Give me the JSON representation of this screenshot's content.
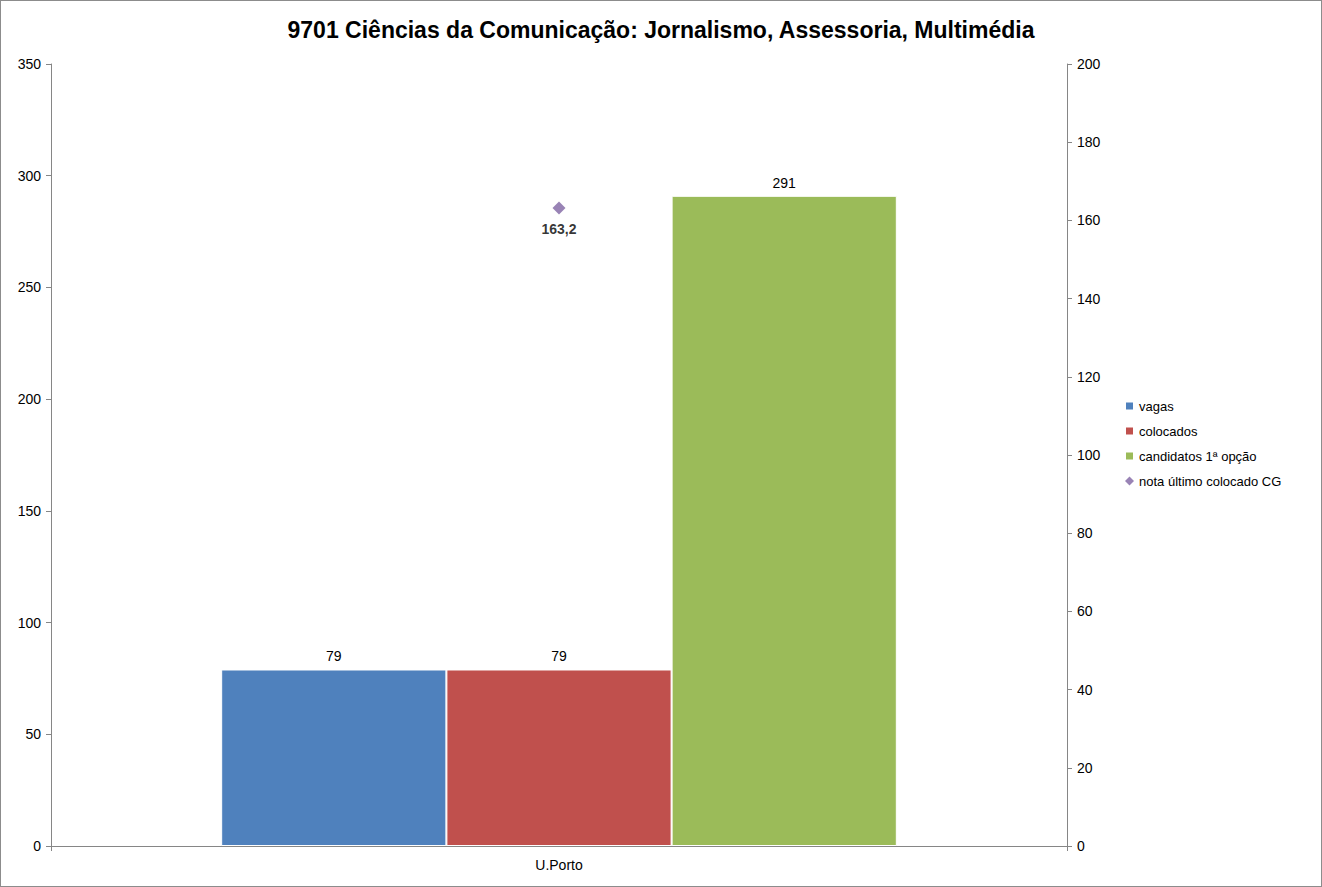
{
  "chart_data": {
    "type": "bar",
    "title": "9701 Ciências da Comunicação: Jornalismo, Assessoria, Multimédia",
    "categories": [
      "U.Porto"
    ],
    "series": [
      {
        "name": "vagas",
        "color": "#4F81BD",
        "values": [
          79
        ]
      },
      {
        "name": "colocados",
        "color": "#C0504D",
        "values": [
          79
        ]
      },
      {
        "name": "candidatos 1ª opção",
        "color": "#9BBB59",
        "values": [
          291
        ]
      },
      {
        "name": "nota último colocado CG",
        "type": "scatter",
        "marker": "diamond",
        "axis": "y2",
        "color": "#8064A2",
        "values": [
          163.2
        ],
        "value_labels": [
          "163,2"
        ]
      }
    ],
    "ylim": [
      0,
      350
    ],
    "yticks": [
      0,
      50,
      100,
      150,
      200,
      250,
      300,
      350
    ],
    "y2lim": [
      0,
      200
    ],
    "y2ticks": [
      0,
      20,
      40,
      60,
      80,
      100,
      120,
      140,
      160,
      180,
      200
    ],
    "grid": false,
    "legend": "right",
    "data_labels": true
  }
}
